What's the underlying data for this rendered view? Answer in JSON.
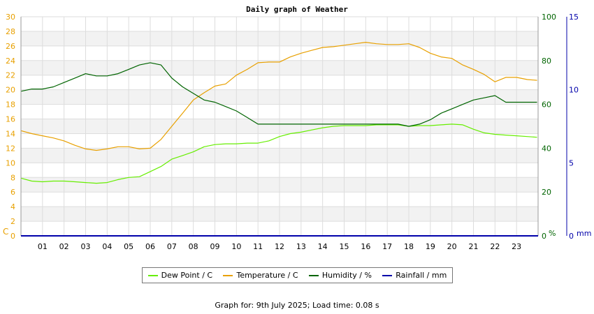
{
  "chart_data": {
    "type": "line",
    "title": "Daily graph of Weather",
    "x_ticks": [
      "01",
      "02",
      "03",
      "04",
      "05",
      "06",
      "07",
      "08",
      "09",
      "10",
      "11",
      "12",
      "13",
      "14",
      "15",
      "16",
      "17",
      "18",
      "19",
      "20",
      "21",
      "22",
      "23"
    ],
    "xlim": [
      0,
      24
    ],
    "left_axis": {
      "unit_label": "C",
      "ticks": [
        0,
        2,
        4,
        6,
        8,
        10,
        12,
        14,
        16,
        18,
        20,
        22,
        24,
        26,
        28,
        30
      ],
      "ylim": [
        0,
        30
      ],
      "color": "#e8a000"
    },
    "right_axis_1": {
      "unit_label": "%",
      "ticks": [
        0,
        20,
        40,
        60,
        80,
        100
      ],
      "ylim": [
        0,
        100
      ],
      "color": "#006400"
    },
    "right_axis_2": {
      "unit_label": "mm",
      "ticks": [
        0,
        5,
        10,
        15
      ],
      "ylim": [
        0,
        15
      ],
      "color": "#0000aa"
    },
    "grid": true,
    "series": [
      {
        "name": "Dew Point / C",
        "color": "#66ee00",
        "axis": "left",
        "points": [
          [
            0,
            7.9
          ],
          [
            0.5,
            7.5
          ],
          [
            1,
            7.4
          ],
          [
            1.5,
            7.5
          ],
          [
            2,
            7.5
          ],
          [
            2.5,
            7.4
          ],
          [
            3,
            7.3
          ],
          [
            3.5,
            7.2
          ],
          [
            4,
            7.3
          ],
          [
            4.5,
            7.7
          ],
          [
            5,
            8.0
          ],
          [
            5.5,
            8.1
          ],
          [
            6,
            8.8
          ],
          [
            6.5,
            9.5
          ],
          [
            7,
            10.5
          ],
          [
            7.5,
            11.0
          ],
          [
            8,
            11.5
          ],
          [
            8.5,
            12.2
          ],
          [
            9,
            12.5
          ],
          [
            9.5,
            12.6
          ],
          [
            10,
            12.6
          ],
          [
            10.5,
            12.7
          ],
          [
            11,
            12.7
          ],
          [
            11.5,
            13.0
          ],
          [
            12,
            13.6
          ],
          [
            12.5,
            14.0
          ],
          [
            13,
            14.2
          ],
          [
            13.5,
            14.5
          ],
          [
            14,
            14.8
          ],
          [
            14.5,
            15.0
          ],
          [
            15,
            15.1
          ],
          [
            15.5,
            15.1
          ],
          [
            16,
            15.1
          ],
          [
            16.5,
            15.2
          ],
          [
            17,
            15.2
          ],
          [
            17.5,
            15.2
          ],
          [
            18,
            15.0
          ],
          [
            18.5,
            15.1
          ],
          [
            19,
            15.1
          ],
          [
            19.5,
            15.2
          ],
          [
            20,
            15.3
          ],
          [
            20.5,
            15.2
          ],
          [
            21,
            14.6
          ],
          [
            21.5,
            14.1
          ],
          [
            22,
            13.9
          ],
          [
            22.5,
            13.8
          ],
          [
            23,
            13.7
          ],
          [
            23.5,
            13.6
          ],
          [
            23.95,
            13.5
          ]
        ]
      },
      {
        "name": "Temperature / C",
        "color": "#e8a000",
        "axis": "left",
        "points": [
          [
            0,
            14.4
          ],
          [
            0.5,
            14.0
          ],
          [
            1,
            13.7
          ],
          [
            1.5,
            13.4
          ],
          [
            2,
            13.0
          ],
          [
            2.5,
            12.4
          ],
          [
            3,
            11.9
          ],
          [
            3.5,
            11.7
          ],
          [
            4,
            11.9
          ],
          [
            4.5,
            12.2
          ],
          [
            5,
            12.2
          ],
          [
            5.5,
            11.9
          ],
          [
            6,
            12.0
          ],
          [
            6.5,
            13.2
          ],
          [
            7,
            15.0
          ],
          [
            7.5,
            16.8
          ],
          [
            8,
            18.6
          ],
          [
            8.5,
            19.6
          ],
          [
            9,
            20.5
          ],
          [
            9.5,
            20.8
          ],
          [
            10,
            22.0
          ],
          [
            10.5,
            22.8
          ],
          [
            11,
            23.7
          ],
          [
            11.5,
            23.8
          ],
          [
            12,
            23.8
          ],
          [
            12.5,
            24.5
          ],
          [
            13,
            25.0
          ],
          [
            13.5,
            25.4
          ],
          [
            14,
            25.8
          ],
          [
            14.5,
            25.9
          ],
          [
            15,
            26.1
          ],
          [
            15.5,
            26.3
          ],
          [
            16,
            26.5
          ],
          [
            16.5,
            26.3
          ],
          [
            17,
            26.2
          ],
          [
            17.5,
            26.2
          ],
          [
            18,
            26.3
          ],
          [
            18.5,
            25.8
          ],
          [
            19,
            25.0
          ],
          [
            19.5,
            24.5
          ],
          [
            20,
            24.3
          ],
          [
            20.5,
            23.4
          ],
          [
            21,
            22.8
          ],
          [
            21.5,
            22.1
          ],
          [
            22,
            21.1
          ],
          [
            22.5,
            21.7
          ],
          [
            23,
            21.7
          ],
          [
            23.5,
            21.4
          ],
          [
            23.95,
            21.3
          ]
        ]
      },
      {
        "name": "Humidity / %",
        "color": "#006400",
        "axis": "right_1",
        "points": [
          [
            0,
            66
          ],
          [
            0.5,
            67
          ],
          [
            1,
            67
          ],
          [
            1.5,
            68
          ],
          [
            2,
            70
          ],
          [
            2.5,
            72
          ],
          [
            3,
            74
          ],
          [
            3.5,
            73
          ],
          [
            4,
            73
          ],
          [
            4.5,
            74
          ],
          [
            5,
            76
          ],
          [
            5.5,
            78
          ],
          [
            6,
            79
          ],
          [
            6.5,
            78
          ],
          [
            7,
            72
          ],
          [
            7.5,
            68
          ],
          [
            8,
            65
          ],
          [
            8.5,
            62
          ],
          [
            9,
            61
          ],
          [
            9.5,
            59
          ],
          [
            10,
            57
          ],
          [
            10.5,
            54
          ],
          [
            11,
            51
          ],
          [
            11.5,
            51
          ],
          [
            12,
            51
          ],
          [
            12.5,
            51
          ],
          [
            13,
            51
          ],
          [
            13.5,
            51
          ],
          [
            14,
            51
          ],
          [
            14.5,
            51
          ],
          [
            15,
            51
          ],
          [
            15.5,
            51
          ],
          [
            16,
            51
          ],
          [
            16.5,
            51
          ],
          [
            17,
            51
          ],
          [
            17.5,
            51
          ],
          [
            18,
            50
          ],
          [
            18.5,
            51
          ],
          [
            19,
            53
          ],
          [
            19.5,
            56
          ],
          [
            20,
            58
          ],
          [
            20.5,
            60
          ],
          [
            21,
            62
          ],
          [
            21.5,
            63
          ],
          [
            22,
            64
          ],
          [
            22.5,
            61
          ],
          [
            23,
            61
          ],
          [
            23.5,
            61
          ],
          [
            23.95,
            61
          ]
        ]
      },
      {
        "name": "Rainfall / mm",
        "color": "#0000aa",
        "axis": "right_2",
        "points": [
          [
            0,
            0
          ],
          [
            23.95,
            0
          ]
        ]
      }
    ]
  },
  "footer": "Graph for: 9th July 2025; Load time: 0.08 s"
}
